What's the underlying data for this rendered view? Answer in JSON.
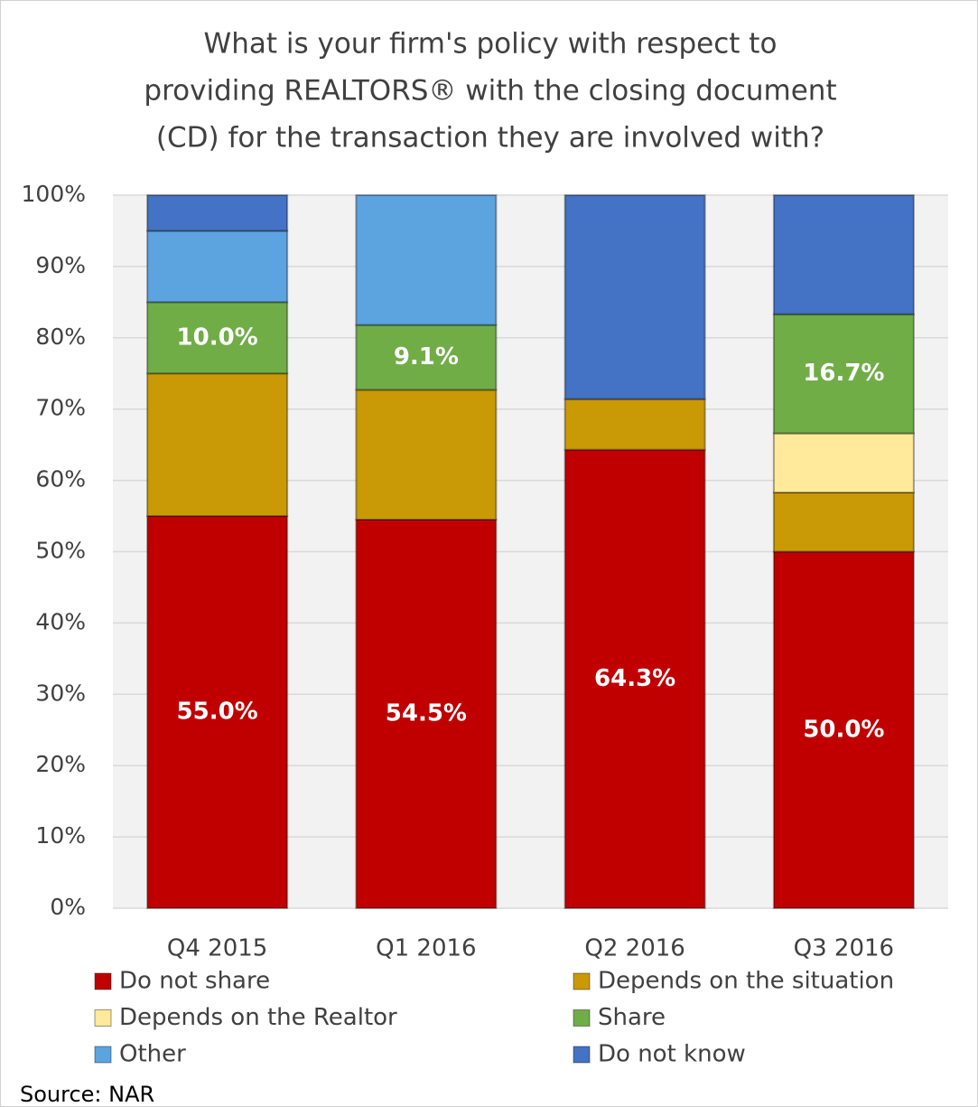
{
  "chart_data": {
    "type": "stacked_bar",
    "title": [
      "What is your firm's policy with respect to",
      "providing REALTORS® with the closing document",
      "(CD) for the transaction they are involved with?"
    ],
    "categories": [
      "Q4 2015",
      "Q1 2016",
      "Q2 2016",
      "Q3 2016"
    ],
    "series": [
      {
        "name": "Do not share",
        "color": "#c00000",
        "values": [
          55.0,
          54.5,
          64.3,
          50.0
        ],
        "value_labels": [
          "55.0%",
          "54.5%",
          "64.3%",
          "50.0%"
        ]
      },
      {
        "name": "Depends on the situation",
        "color": "#c99a06",
        "values": [
          20,
          18.2,
          7.1,
          8.3
        ]
      },
      {
        "name": "Depends on the Realtor",
        "color": "#ffe99a",
        "values": [
          0,
          0,
          0,
          8.3
        ]
      },
      {
        "name": "Share",
        "color": "#70ad47",
        "values": [
          10.0,
          9.1,
          0,
          16.7
        ],
        "value_labels": [
          "10.0%",
          "9.1%",
          null,
          "16.7%"
        ]
      },
      {
        "name": "Other",
        "color": "#5ca4e0",
        "values": [
          10,
          18.2,
          0,
          0
        ]
      },
      {
        "name": "Do not know",
        "color": "#4472c4",
        "values": [
          5,
          0,
          28.6,
          16.7
        ]
      }
    ],
    "ylim": [
      0,
      100
    ],
    "yticks": [
      {
        "value": 0,
        "label": "0%"
      },
      {
        "value": 10,
        "label": "10%"
      },
      {
        "value": 20,
        "label": "20%"
      },
      {
        "value": 30,
        "label": "30%"
      },
      {
        "value": 40,
        "label": "40%"
      },
      {
        "value": 50,
        "label": "50%"
      },
      {
        "value": 60,
        "label": "60%"
      },
      {
        "value": 70,
        "label": "70%"
      },
      {
        "value": 80,
        "label": "80%"
      },
      {
        "value": 90,
        "label": "90%"
      },
      {
        "value": 100,
        "label": "100%"
      }
    ],
    "grid": true,
    "legend": "bottom",
    "source": "Source: NAR"
  }
}
